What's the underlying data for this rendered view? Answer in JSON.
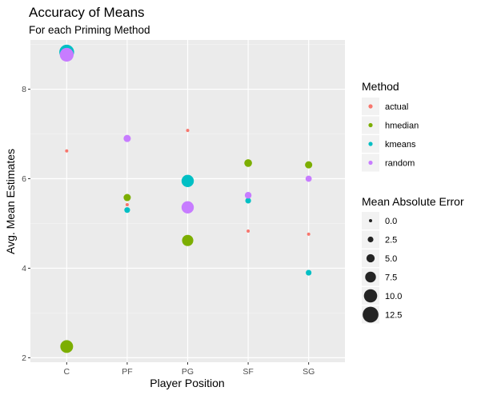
{
  "chart_data": {
    "type": "scatter",
    "title": "Accuracy of Means",
    "subtitle": "For each Priming Method",
    "xlabel": "Player Position",
    "ylabel": "Avg. Mean Estimates",
    "categories": [
      "C",
      "PF",
      "PG",
      "SF",
      "SG"
    ],
    "ylim": [
      1.9,
      9.1
    ],
    "yticks": [
      2,
      4,
      6,
      8
    ],
    "grid": true,
    "legend_position": "right",
    "color_legend": {
      "title": "Method",
      "entries": [
        {
          "name": "actual",
          "color": "#F8766D"
        },
        {
          "name": "hmedian",
          "color": "#7CAE00"
        },
        {
          "name": "kmeans",
          "color": "#00BFC4"
        },
        {
          "name": "random",
          "color": "#C77CFF"
        }
      ]
    },
    "size_legend": {
      "title": "Mean Absolute Error",
      "values": [
        0.0,
        2.5,
        5.0,
        7.5,
        10.0,
        12.5
      ],
      "labels": [
        "0.0",
        "2.5",
        "5.0",
        "7.5",
        "10.0",
        "12.5"
      ]
    },
    "series": [
      {
        "method": "actual",
        "points": [
          {
            "x": "C",
            "y": 6.62,
            "error": 0
          },
          {
            "x": "PF",
            "y": 5.42,
            "error": 0
          },
          {
            "x": "PG",
            "y": 7.08,
            "error": 0
          },
          {
            "x": "SF",
            "y": 4.83,
            "error": 0
          },
          {
            "x": "SG",
            "y": 4.76,
            "error": 0
          }
        ]
      },
      {
        "method": "hmedian",
        "points": [
          {
            "x": "C",
            "y": 2.25,
            "error": 9.5
          },
          {
            "x": "PF",
            "y": 5.58,
            "error": 4.0
          },
          {
            "x": "PG",
            "y": 4.62,
            "error": 8.0
          },
          {
            "x": "SF",
            "y": 6.35,
            "error": 4.5
          },
          {
            "x": "SG",
            "y": 6.31,
            "error": 4.0
          }
        ]
      },
      {
        "method": "kmeans",
        "points": [
          {
            "x": "C",
            "y": 8.83,
            "error": 11.5
          },
          {
            "x": "PF",
            "y": 5.3,
            "error": 2.5
          },
          {
            "x": "PG",
            "y": 5.95,
            "error": 9.0
          },
          {
            "x": "SF",
            "y": 5.51,
            "error": 2.5
          },
          {
            "x": "SG",
            "y": 3.9,
            "error": 2.5
          }
        ]
      },
      {
        "method": "random",
        "points": [
          {
            "x": "C",
            "y": 8.77,
            "error": 10.5
          },
          {
            "x": "PF",
            "y": 6.9,
            "error": 4.0
          },
          {
            "x": "PG",
            "y": 5.36,
            "error": 9.0
          },
          {
            "x": "SF",
            "y": 5.63,
            "error": 3.5
          },
          {
            "x": "SG",
            "y": 6.0,
            "error": 3.0
          }
        ]
      }
    ]
  }
}
